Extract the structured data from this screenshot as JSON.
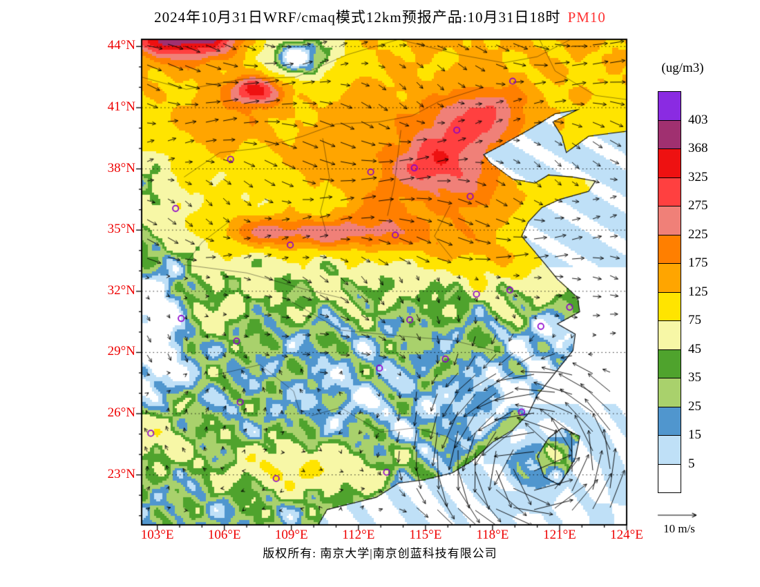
{
  "title": {
    "text": "2024年10月31日WRF/cmaq模式12km预报产品:10月31日18时",
    "species": "PM10",
    "species_color": "#ff3333"
  },
  "axes": {
    "label_color": "#ee0000",
    "lat": [
      {
        "label": "44°N",
        "value": 44
      },
      {
        "label": "41°N",
        "value": 41
      },
      {
        "label": "38°N",
        "value": 38
      },
      {
        "label": "35°N",
        "value": 35
      },
      {
        "label": "32°N",
        "value": 32
      },
      {
        "label": "29°N",
        "value": 29
      },
      {
        "label": "26°N",
        "value": 26
      },
      {
        "label": "23°N",
        "value": 23
      }
    ],
    "lon": [
      {
        "label": "103°E",
        "value": 103
      },
      {
        "label": "106°E",
        "value": 106
      },
      {
        "label": "109°E",
        "value": 109
      },
      {
        "label": "112°E",
        "value": 112
      },
      {
        "label": "115°E",
        "value": 115
      },
      {
        "label": "118°E",
        "value": 118
      },
      {
        "label": "121°E",
        "value": 121
      },
      {
        "label": "124°E",
        "value": 124
      }
    ]
  },
  "legend": {
    "units": "(ug/m3)",
    "levels": [
      403,
      368,
      325,
      275,
      225,
      175,
      125,
      75,
      45,
      35,
      25,
      15,
      5
    ]
  },
  "wind_ref": {
    "label": "10 m/s",
    "speed": 10
  },
  "footer": {
    "copyright": "版权所有: 南京大学|南京创蓝科技有限公司"
  },
  "chart_data": {
    "type": "heatmap",
    "variable": "PM10",
    "units": "ug/m3",
    "model": "WRF/cmaq 12km",
    "valid_time": "2024-10-31 18时",
    "lon_range": [
      102.3,
      124.0
    ],
    "lat_range": [
      20.55,
      44.35
    ],
    "levels": [
      5,
      15,
      25,
      35,
      45,
      75,
      125,
      175,
      225,
      275,
      325,
      368,
      403
    ],
    "band_colors_low_to_high": [
      "#ffffff",
      "#bfe0f7",
      "#5096ce",
      "#a9d16c",
      "#4fa32d",
      "#f7f7a6",
      "#ffe400",
      "#ffa500",
      "#ff7f00",
      "#f08078",
      "#ff4040",
      "#ee1111",
      "#a03070",
      "#8a2be2"
    ],
    "cyclone": {
      "lon": 119.8,
      "lat": 23.5
    },
    "hotspots": [
      [
        105.0,
        44.5,
        1.3,
        0.8,
        250
      ],
      [
        103.1,
        44.3,
        0.9,
        0.6,
        160
      ],
      [
        107.4,
        41.85,
        0.8,
        0.5,
        250
      ],
      [
        106.2,
        40.2,
        1.5,
        1.0,
        55
      ],
      [
        112.3,
        41.2,
        1.6,
        1.0,
        35
      ],
      [
        116.6,
        39.7,
        1.7,
        1.2,
        150
      ],
      [
        117.9,
        40.9,
        1.3,
        0.9,
        100
      ],
      [
        114.9,
        38.2,
        1.3,
        0.9,
        145
      ],
      [
        116.9,
        36.8,
        1.5,
        1.1,
        115
      ],
      [
        113.0,
        36.4,
        1.3,
        1.0,
        75
      ],
      [
        110.6,
        38.6,
        1.3,
        1.0,
        60
      ],
      [
        108.0,
        34.9,
        1.4,
        0.55,
        165
      ],
      [
        110.7,
        34.8,
        1.2,
        0.55,
        130
      ],
      [
        113.2,
        34.9,
        1.4,
        0.7,
        115
      ],
      [
        116.0,
        34.4,
        1.3,
        0.8,
        75
      ],
      [
        118.5,
        33.8,
        1.3,
        0.9,
        55
      ],
      [
        104.9,
        30.5,
        1.3,
        0.9,
        26
      ],
      [
        108.3,
        23.3,
        1.8,
        0.9,
        40
      ],
      [
        111.2,
        23.2,
        1.6,
        0.8,
        30
      ],
      [
        103.0,
        24.8,
        1.1,
        0.9,
        36
      ],
      [
        109.3,
        43.6,
        1.6,
        1.0,
        -125
      ],
      [
        102.5,
        37.5,
        0.9,
        1.6,
        -45
      ],
      [
        103.0,
        31.8,
        1.2,
        2.0,
        -45
      ],
      [
        102.7,
        29.0,
        1.0,
        1.5,
        -32
      ],
      [
        111.5,
        27.0,
        1.8,
        1.3,
        -13
      ],
      [
        115.6,
        25.8,
        1.6,
        1.2,
        -10
      ],
      [
        119.6,
        27.6,
        1.1,
        0.9,
        -22
      ],
      [
        120.7,
        29.8,
        1.0,
        0.8,
        -22
      ],
      [
        118.0,
        26.8,
        1.2,
        1.0,
        -12
      ]
    ],
    "markers": [
      [
        116.4,
        39.9
      ],
      [
        114.5,
        38.05
      ],
      [
        112.55,
        37.85
      ],
      [
        106.28,
        38.47
      ],
      [
        103.82,
        36.06
      ],
      [
        108.95,
        34.27
      ],
      [
        113.65,
        34.76
      ],
      [
        117.0,
        36.65
      ],
      [
        117.28,
        31.86
      ],
      [
        118.78,
        32.06
      ],
      [
        121.45,
        31.22
      ],
      [
        114.3,
        30.6
      ],
      [
        112.94,
        28.23
      ],
      [
        115.89,
        28.68
      ],
      [
        120.16,
        30.28
      ],
      [
        104.07,
        30.67
      ],
      [
        106.55,
        29.56
      ],
      [
        106.71,
        26.57
      ],
      [
        102.71,
        25.04
      ],
      [
        108.32,
        22.82
      ],
      [
        113.26,
        23.13
      ],
      [
        119.3,
        26.08
      ],
      [
        118.9,
        42.3
      ]
    ],
    "geometry": {
      "coast": [
        [
          124.0,
          39.85
        ],
        [
          122.3,
          39.6
        ],
        [
          121.3,
          38.8
        ],
        [
          121.1,
          39.6
        ],
        [
          120.7,
          40.3
        ],
        [
          121.8,
          40.9
        ],
        [
          120.8,
          40.7
        ],
        [
          119.6,
          39.9
        ],
        [
          118.3,
          39.1
        ],
        [
          117.6,
          38.7
        ],
        [
          117.9,
          38.3
        ],
        [
          118.9,
          37.5
        ],
        [
          119.9,
          37.3
        ],
        [
          120.5,
          37.7
        ],
        [
          121.6,
          37.6
        ],
        [
          122.6,
          37.4
        ],
        [
          122.3,
          36.9
        ],
        [
          121.0,
          36.5
        ],
        [
          120.2,
          36.1
        ],
        [
          119.6,
          35.4
        ],
        [
          119.3,
          34.7
        ],
        [
          120.3,
          33.4
        ],
        [
          120.9,
          32.6
        ],
        [
          121.8,
          31.7
        ],
        [
          121.9,
          31.0
        ],
        [
          120.9,
          30.4
        ],
        [
          121.7,
          29.9
        ],
        [
          121.6,
          29.1
        ],
        [
          120.8,
          28.0
        ],
        [
          120.0,
          26.9
        ],
        [
          119.6,
          26.0
        ],
        [
          118.9,
          25.2
        ],
        [
          118.0,
          24.6
        ],
        [
          117.1,
          23.7
        ],
        [
          116.2,
          23.1
        ],
        [
          114.9,
          22.75
        ],
        [
          113.8,
          22.6
        ],
        [
          112.8,
          21.9
        ],
        [
          111.7,
          21.6
        ],
        [
          110.6,
          21.3
        ],
        [
          110.2,
          20.55
        ]
      ],
      "taiwan": [
        [
          121.1,
          25.3
        ],
        [
          121.9,
          24.9
        ],
        [
          121.7,
          23.8
        ],
        [
          121.0,
          22.5
        ],
        [
          120.3,
          22.9
        ],
        [
          120.0,
          23.9
        ],
        [
          120.5,
          24.8
        ],
        [
          121.1,
          25.3
        ]
      ],
      "borders": [
        [
          [
            102.3,
            42.5
          ],
          [
            104.3,
            41.9
          ],
          [
            106.8,
            42.4
          ],
          [
            109.2,
            42.5
          ],
          [
            111.5,
            43.6
          ],
          [
            113.8,
            44.35
          ]
        ],
        [
          [
            113.8,
            44.35
          ],
          [
            116.5,
            43.6
          ],
          [
            118.5,
            43.2
          ],
          [
            120.0,
            43.5
          ],
          [
            121.5,
            44.35
          ]
        ],
        [
          [
            110.4,
            39.5
          ],
          [
            110.7,
            37.6
          ],
          [
            110.3,
            35.9
          ],
          [
            110.6,
            34.7
          ]
        ],
        [
          [
            113.9,
            39.9
          ],
          [
            113.6,
            37.2
          ],
          [
            113.3,
            35.7
          ]
        ],
        [
          [
            116.1,
            36.2
          ],
          [
            115.4,
            34.7
          ],
          [
            116.2,
            33.6
          ]
        ],
        [
          [
            104.2,
            33.3
          ],
          [
            107.0,
            32.9
          ],
          [
            109.6,
            32.1
          ],
          [
            111.5,
            31.6
          ]
        ],
        [
          [
            109.0,
            31.5
          ],
          [
            111.2,
            30.1
          ],
          [
            113.9,
            29.8
          ],
          [
            116.2,
            29.6
          ],
          [
            118.4,
            29.0
          ]
        ],
        [
          [
            109.9,
            25.9
          ],
          [
            111.2,
            26.3
          ],
          [
            113.0,
            25.1
          ],
          [
            114.5,
            25.3
          ],
          [
            115.9,
            24.9
          ],
          [
            117.1,
            24.1
          ]
        ],
        [
          [
            105.6,
            27.9
          ],
          [
            107.6,
            28.4
          ],
          [
            109.1,
            27.1
          ],
          [
            109.4,
            26.0
          ]
        ],
        [
          [
            117.6,
            42.0
          ],
          [
            115.6,
            41.3
          ],
          [
            114.4,
            40.6
          ],
          [
            112.9,
            40.3
          ],
          [
            111.0,
            40.2
          ],
          [
            109.5,
            39.6
          ],
          [
            107.5,
            39.0
          ],
          [
            105.8,
            38.8
          ],
          [
            104.2,
            37.6
          ]
        ],
        [
          [
            106.2,
            35.4
          ],
          [
            105.0,
            34.4
          ],
          [
            104.3,
            33.4
          ]
        ],
        [
          [
            120.1,
            44.35
          ],
          [
            120.8,
            42.8
          ],
          [
            122.6,
            41.6
          ],
          [
            124.0,
            41.4
          ]
        ]
      ]
    }
  }
}
